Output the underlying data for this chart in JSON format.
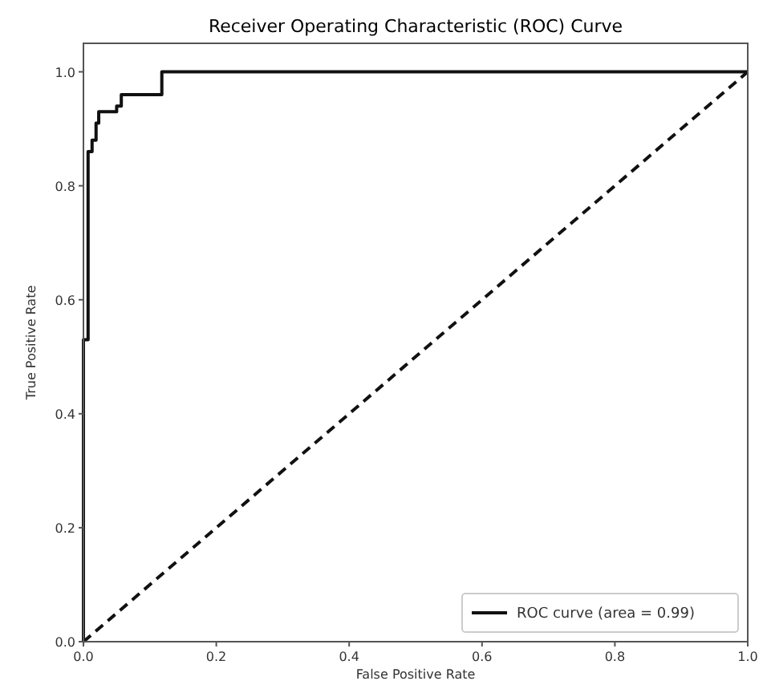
{
  "chart_data": {
    "type": "line",
    "title": "Receiver Operating Characteristic (ROC) Curve",
    "xlabel": "False Positive Rate",
    "ylabel": "True Positive Rate",
    "xlim": [
      0,
      1
    ],
    "ylim": [
      0,
      1.05
    ],
    "xticks": [
      {
        "value": 0,
        "label": "0.0"
      },
      0.2,
      0.4,
      0.6,
      0.8,
      {
        "value": 1,
        "label": "1.0"
      }
    ],
    "yticks": [
      {
        "value": 0,
        "label": "0.0"
      },
      0.2,
      0.4,
      0.6,
      0.8,
      {
        "value": 1,
        "label": "1.0"
      }
    ],
    "legend": "bottom right",
    "grid": false,
    "series": [
      {
        "name": "ROC curve (area = 0.99)",
        "color": "#111111",
        "line_style": "solid",
        "x": [
          0,
          0,
          0.007,
          0.007,
          0.013,
          0.013,
          0.019,
          0.019,
          0.023,
          0.023,
          0.05,
          0.05,
          0.057,
          0.057,
          0.118,
          0.118,
          1
        ],
        "values": [
          0,
          0.53,
          0.53,
          0.86,
          0.86,
          0.88,
          0.88,
          0.91,
          0.91,
          0.93,
          0.93,
          0.94,
          0.94,
          0.96,
          0.96,
          1,
          1
        ]
      },
      {
        "color": "#111111",
        "line_style": "dashed",
        "x": [
          0,
          1
        ],
        "values": [
          0,
          1
        ]
      }
    ]
  }
}
